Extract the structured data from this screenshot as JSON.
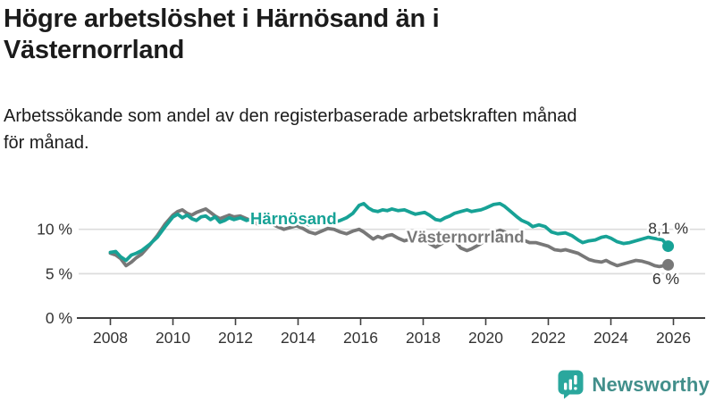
{
  "header": {
    "title": "Högre arbetslöshet i Härnösand än i\nVästernorrland",
    "subtitle": "Arbetssökande som andel av den registerbaserade arbetskraften månad\nför månad."
  },
  "branding": {
    "name": "Newsworthy",
    "text_color": "#428f8b",
    "icon": "bar-chart-speech-bubble-icon",
    "icon_color": "#2aa79d"
  },
  "chart_data": {
    "type": "line",
    "title": "Högre arbetslöshet i Härnösand än i Västernorrland",
    "subtitle": "Arbetssökande som andel av den registerbaserade arbetskraften månad för månad.",
    "unit": "%",
    "legend_position": "inline-labels",
    "grid": true,
    "colors": {
      "grid": "#dcdcdc",
      "axis": "#3f3f3f",
      "tick_text": "#333333",
      "end_label_text": "#333333"
    },
    "x_axis": {
      "range": [
        2006.9,
        2027.05
      ],
      "ticks": [
        2008,
        2010,
        2012,
        2014,
        2016,
        2018,
        2020,
        2022,
        2024,
        2026
      ],
      "tick_labels": [
        "2008",
        "2010",
        "2012",
        "2014",
        "2016",
        "2018",
        "2020",
        "2022",
        "2024",
        "2026"
      ]
    },
    "y_axis": {
      "range": [
        0,
        13.5
      ],
      "ticks": [
        {
          "value": 0,
          "label": "0 %"
        },
        {
          "value": 5,
          "label": "5 %"
        },
        {
          "value": 10,
          "label": "10 %"
        }
      ]
    },
    "series": [
      {
        "id": "vasternorrland",
        "name": "Västernorrland",
        "color": "#787878",
        "end_label": "6 %",
        "latest_value": 6.0,
        "points": [
          [
            2008.0,
            7.3
          ],
          [
            2008.17,
            7.1
          ],
          [
            2008.33,
            6.7
          ],
          [
            2008.5,
            5.9
          ],
          [
            2008.67,
            6.3
          ],
          [
            2008.83,
            6.8
          ],
          [
            2009.0,
            7.2
          ],
          [
            2009.25,
            8.2
          ],
          [
            2009.5,
            9.3
          ],
          [
            2009.75,
            10.6
          ],
          [
            2010.0,
            11.6
          ],
          [
            2010.15,
            12.0
          ],
          [
            2010.3,
            12.2
          ],
          [
            2010.45,
            11.8
          ],
          [
            2010.6,
            11.6
          ],
          [
            2010.75,
            11.9
          ],
          [
            2010.9,
            12.1
          ],
          [
            2011.05,
            12.3
          ],
          [
            2011.2,
            11.9
          ],
          [
            2011.35,
            11.5
          ],
          [
            2011.5,
            11.2
          ],
          [
            2011.65,
            11.4
          ],
          [
            2011.8,
            11.6
          ],
          [
            2011.95,
            11.4
          ],
          [
            2012.15,
            11.5
          ],
          [
            2012.35,
            11.2
          ],
          [
            2012.55,
            10.9
          ],
          [
            2012.75,
            10.5
          ],
          [
            2012.95,
            10.7
          ],
          [
            2013.15,
            10.6
          ],
          [
            2013.35,
            10.3
          ],
          [
            2013.55,
            10.0
          ],
          [
            2013.75,
            10.2
          ],
          [
            2013.95,
            10.4
          ],
          [
            2014.15,
            10.1
          ],
          [
            2014.35,
            9.7
          ],
          [
            2014.55,
            9.5
          ],
          [
            2014.75,
            9.8
          ],
          [
            2014.95,
            10.1
          ],
          [
            2015.15,
            10.0
          ],
          [
            2015.35,
            9.7
          ],
          [
            2015.55,
            9.5
          ],
          [
            2015.75,
            9.8
          ],
          [
            2015.95,
            10.0
          ],
          [
            2016.1,
            9.7
          ],
          [
            2016.25,
            9.3
          ],
          [
            2016.4,
            8.9
          ],
          [
            2016.55,
            9.2
          ],
          [
            2016.7,
            9.0
          ],
          [
            2016.85,
            9.3
          ],
          [
            2017.0,
            9.4
          ],
          [
            2017.2,
            9.0
          ],
          [
            2017.4,
            8.7
          ],
          [
            2017.6,
            8.9
          ],
          [
            2017.75,
            9.1
          ],
          [
            2017.9,
            9.2
          ],
          [
            2018.05,
            9.0
          ],
          [
            2018.2,
            8.4
          ],
          [
            2018.4,
            8.0
          ],
          [
            2018.55,
            8.3
          ],
          [
            2018.7,
            8.6
          ],
          [
            2018.85,
            8.8
          ],
          [
            2019.0,
            8.7
          ],
          [
            2019.2,
            7.9
          ],
          [
            2019.4,
            7.6
          ],
          [
            2019.55,
            7.8
          ],
          [
            2019.7,
            8.1
          ],
          [
            2019.85,
            8.4
          ],
          [
            2020.0,
            8.8
          ],
          [
            2020.25,
            9.6
          ],
          [
            2020.45,
            9.9
          ],
          [
            2020.6,
            9.7
          ],
          [
            2020.8,
            9.2
          ],
          [
            2021.0,
            8.9
          ],
          [
            2021.2,
            8.8
          ],
          [
            2021.4,
            8.5
          ],
          [
            2021.6,
            8.5
          ],
          [
            2021.8,
            8.3
          ],
          [
            2022.0,
            8.1
          ],
          [
            2022.2,
            7.7
          ],
          [
            2022.4,
            7.6
          ],
          [
            2022.55,
            7.7
          ],
          [
            2022.75,
            7.5
          ],
          [
            2022.95,
            7.3
          ],
          [
            2023.1,
            7.0
          ],
          [
            2023.3,
            6.6
          ],
          [
            2023.5,
            6.4
          ],
          [
            2023.7,
            6.3
          ],
          [
            2023.85,
            6.5
          ],
          [
            2024.0,
            6.2
          ],
          [
            2024.2,
            5.9
          ],
          [
            2024.4,
            6.1
          ],
          [
            2024.6,
            6.3
          ],
          [
            2024.8,
            6.5
          ],
          [
            2025.0,
            6.4
          ],
          [
            2025.2,
            6.2
          ],
          [
            2025.4,
            5.9
          ],
          [
            2025.55,
            5.8
          ],
          [
            2025.7,
            5.9
          ],
          [
            2025.83,
            6.0
          ]
        ]
      },
      {
        "id": "harnosand",
        "name": "Härnösand",
        "color": "#17a296",
        "end_label": "8,1 %",
        "latest_value": 8.1,
        "points": [
          [
            2008.0,
            7.4
          ],
          [
            2008.17,
            7.5
          ],
          [
            2008.33,
            6.9
          ],
          [
            2008.5,
            6.5
          ],
          [
            2008.67,
            7.1
          ],
          [
            2008.83,
            7.3
          ],
          [
            2009.0,
            7.6
          ],
          [
            2009.25,
            8.3
          ],
          [
            2009.5,
            9.1
          ],
          [
            2009.75,
            10.3
          ],
          [
            2010.0,
            11.4
          ],
          [
            2010.15,
            11.7
          ],
          [
            2010.3,
            11.3
          ],
          [
            2010.45,
            11.6
          ],
          [
            2010.6,
            11.2
          ],
          [
            2010.75,
            11.0
          ],
          [
            2010.9,
            11.4
          ],
          [
            2011.05,
            11.5
          ],
          [
            2011.2,
            11.1
          ],
          [
            2011.35,
            11.4
          ],
          [
            2011.5,
            10.8
          ],
          [
            2011.65,
            11.0
          ],
          [
            2011.8,
            11.3
          ],
          [
            2011.95,
            11.1
          ],
          [
            2012.15,
            11.3
          ],
          [
            2012.35,
            11.0
          ],
          [
            2012.55,
            11.2
          ],
          [
            2012.75,
            10.9
          ],
          [
            2012.95,
            11.1
          ],
          [
            2013.15,
            10.8
          ],
          [
            2013.35,
            11.0
          ],
          [
            2013.55,
            10.7
          ],
          [
            2013.75,
            10.9
          ],
          [
            2013.95,
            10.6
          ],
          [
            2014.15,
            10.8
          ],
          [
            2014.35,
            10.5
          ],
          [
            2014.55,
            10.7
          ],
          [
            2014.75,
            10.9
          ],
          [
            2014.95,
            11.1
          ],
          [
            2015.15,
            10.8
          ],
          [
            2015.35,
            11.0
          ],
          [
            2015.55,
            11.3
          ],
          [
            2015.75,
            11.8
          ],
          [
            2015.95,
            12.7
          ],
          [
            2016.1,
            12.9
          ],
          [
            2016.25,
            12.4
          ],
          [
            2016.4,
            12.1
          ],
          [
            2016.55,
            12.0
          ],
          [
            2016.7,
            12.2
          ],
          [
            2016.85,
            12.1
          ],
          [
            2017.0,
            12.3
          ],
          [
            2017.2,
            12.1
          ],
          [
            2017.4,
            12.2
          ],
          [
            2017.6,
            11.9
          ],
          [
            2017.75,
            11.7
          ],
          [
            2017.9,
            11.8
          ],
          [
            2018.05,
            11.9
          ],
          [
            2018.2,
            11.6
          ],
          [
            2018.4,
            11.1
          ],
          [
            2018.55,
            11.0
          ],
          [
            2018.7,
            11.3
          ],
          [
            2018.85,
            11.5
          ],
          [
            2019.0,
            11.8
          ],
          [
            2019.2,
            12.0
          ],
          [
            2019.4,
            12.2
          ],
          [
            2019.55,
            12.0
          ],
          [
            2019.7,
            12.1
          ],
          [
            2019.85,
            12.2
          ],
          [
            2020.0,
            12.4
          ],
          [
            2020.25,
            12.8
          ],
          [
            2020.45,
            12.9
          ],
          [
            2020.6,
            12.6
          ],
          [
            2020.8,
            12.0
          ],
          [
            2021.0,
            11.4
          ],
          [
            2021.15,
            11.0
          ],
          [
            2021.35,
            10.7
          ],
          [
            2021.5,
            10.3
          ],
          [
            2021.7,
            10.5
          ],
          [
            2021.9,
            10.3
          ],
          [
            2022.1,
            9.7
          ],
          [
            2022.3,
            9.5
          ],
          [
            2022.55,
            9.6
          ],
          [
            2022.75,
            9.3
          ],
          [
            2022.95,
            8.8
          ],
          [
            2023.1,
            8.5
          ],
          [
            2023.3,
            8.7
          ],
          [
            2023.5,
            8.8
          ],
          [
            2023.7,
            9.1
          ],
          [
            2023.85,
            9.2
          ],
          [
            2024.0,
            9.0
          ],
          [
            2024.2,
            8.6
          ],
          [
            2024.4,
            8.4
          ],
          [
            2024.6,
            8.5
          ],
          [
            2024.8,
            8.7
          ],
          [
            2025.0,
            8.9
          ],
          [
            2025.2,
            9.1
          ],
          [
            2025.35,
            9.0
          ],
          [
            2025.5,
            8.9
          ],
          [
            2025.65,
            8.8
          ],
          [
            2025.83,
            8.1
          ]
        ]
      }
    ]
  }
}
